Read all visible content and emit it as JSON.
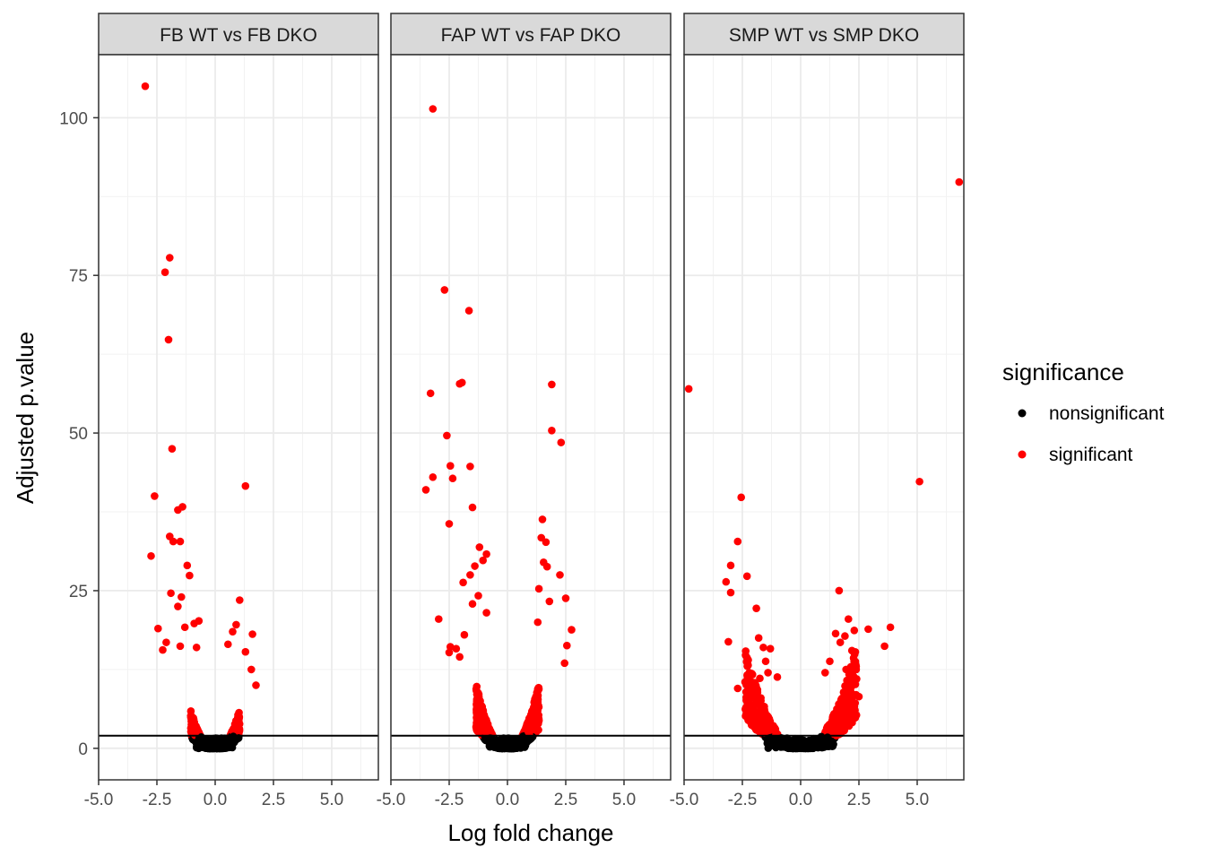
{
  "chart_data": {
    "type": "scatter",
    "xlabel": "Log fold change",
    "ylabel": "Adjusted p.value",
    "xlim": [
      -5.0,
      7.0
    ],
    "ylim": [
      -5.0,
      110.0
    ],
    "x_ticks": [
      "-5.0",
      "-2.5",
      "0.0",
      "2.5",
      "5.0"
    ],
    "y_ticks": [
      "0",
      "25",
      "50",
      "75",
      "100"
    ],
    "hline": 2,
    "grid": true,
    "legend": {
      "title": "significance",
      "position": "right",
      "entries": [
        {
          "label": "nonsignificant",
          "color": "#000000"
        },
        {
          "label": "significant",
          "color": "#ff0000"
        }
      ]
    },
    "panels": [
      {
        "title": "FB WT vs FB DKO",
        "significant_points": [
          [
            -3.0,
            105.0
          ],
          [
            -1.95,
            77.8
          ],
          [
            -2.15,
            75.5
          ],
          [
            -2.0,
            64.8
          ],
          [
            -1.85,
            47.5
          ],
          [
            1.3,
            41.6
          ],
          [
            -2.6,
            40.0
          ],
          [
            -1.4,
            38.3
          ],
          [
            -1.6,
            37.8
          ],
          [
            -1.95,
            33.6
          ],
          [
            -1.8,
            32.8
          ],
          [
            -1.5,
            32.8
          ],
          [
            -2.75,
            30.5
          ],
          [
            -1.2,
            29.0
          ],
          [
            -1.1,
            27.4
          ],
          [
            -1.9,
            24.6
          ],
          [
            -1.45,
            24.0
          ],
          [
            -1.6,
            22.5
          ],
          [
            1.05,
            23.5
          ],
          [
            -2.45,
            19.0
          ],
          [
            -1.3,
            19.2
          ],
          [
            -0.7,
            20.2
          ],
          [
            -0.9,
            19.8
          ],
          [
            0.9,
            19.6
          ],
          [
            1.6,
            18.1
          ],
          [
            0.75,
            18.5
          ],
          [
            -2.1,
            16.8
          ],
          [
            -1.5,
            16.2
          ],
          [
            -2.25,
            15.6
          ],
          [
            0.55,
            16.5
          ],
          [
            -0.8,
            16.0
          ],
          [
            1.3,
            15.3
          ],
          [
            1.75,
            10.0
          ],
          [
            1.55,
            12.5
          ]
        ]
      },
      {
        "title": "FAP WT vs FAP DKO",
        "significant_points": [
          [
            -3.2,
            101.4
          ],
          [
            -2.7,
            72.7
          ],
          [
            -1.65,
            69.4
          ],
          [
            -3.3,
            56.3
          ],
          [
            -1.95,
            58.0
          ],
          [
            -2.05,
            57.8
          ],
          [
            1.9,
            57.7
          ],
          [
            -2.6,
            49.6
          ],
          [
            1.9,
            50.4
          ],
          [
            2.3,
            48.5
          ],
          [
            -2.45,
            44.8
          ],
          [
            -1.6,
            44.7
          ],
          [
            -3.2,
            43.0
          ],
          [
            -2.35,
            42.8
          ],
          [
            -3.5,
            41.0
          ],
          [
            -1.5,
            38.2
          ],
          [
            -2.5,
            35.6
          ],
          [
            1.5,
            36.3
          ],
          [
            1.45,
            33.4
          ],
          [
            1.65,
            32.7
          ],
          [
            -1.2,
            31.9
          ],
          [
            -0.9,
            30.8
          ],
          [
            1.55,
            29.5
          ],
          [
            1.7,
            28.8
          ],
          [
            2.25,
            27.5
          ],
          [
            -1.4,
            28.9
          ],
          [
            -1.05,
            29.8
          ],
          [
            -1.6,
            27.5
          ],
          [
            1.8,
            23.3
          ],
          [
            1.35,
            25.3
          ],
          [
            -1.9,
            26.3
          ],
          [
            -1.25,
            24.2
          ],
          [
            -2.95,
            20.5
          ],
          [
            -1.5,
            22.9
          ],
          [
            2.5,
            23.8
          ],
          [
            2.75,
            18.8
          ],
          [
            -2.45,
            16.1
          ],
          [
            -2.5,
            15.2
          ],
          [
            2.55,
            16.3
          ],
          [
            -2.2,
            15.8
          ],
          [
            2.45,
            13.5
          ],
          [
            -2.05,
            14.5
          ],
          [
            -1.85,
            18.0
          ],
          [
            1.3,
            20.0
          ],
          [
            -0.9,
            21.5
          ]
        ]
      },
      {
        "title": "SMP WT vs SMP DKO",
        "significant_points": [
          [
            6.8,
            89.8
          ],
          [
            -4.8,
            57.0
          ],
          [
            5.1,
            42.3
          ],
          [
            -2.55,
            39.8
          ],
          [
            -2.7,
            32.8
          ],
          [
            -3.0,
            29.0
          ],
          [
            -2.3,
            27.3
          ],
          [
            -3.2,
            26.4
          ],
          [
            -3.0,
            24.7
          ],
          [
            1.65,
            25.0
          ],
          [
            -1.9,
            22.2
          ],
          [
            2.05,
            20.5
          ],
          [
            3.85,
            19.2
          ],
          [
            2.9,
            18.9
          ],
          [
            2.3,
            18.7
          ],
          [
            1.5,
            18.2
          ],
          [
            1.9,
            17.8
          ],
          [
            3.6,
            16.2
          ],
          [
            -3.1,
            16.9
          ],
          [
            -1.8,
            17.5
          ],
          [
            -1.6,
            16.0
          ],
          [
            -1.3,
            15.8
          ],
          [
            1.7,
            16.8
          ],
          [
            2.2,
            15.5
          ],
          [
            -1.5,
            13.8
          ],
          [
            1.25,
            13.8
          ],
          [
            -2.7,
            9.5
          ],
          [
            2.5,
            8.2
          ],
          [
            2.4,
            11.0
          ],
          [
            -1.4,
            12.0
          ],
          [
            1.95,
            12.5
          ],
          [
            -1.75,
            11.1
          ],
          [
            1.05,
            12.0
          ],
          [
            -1.0,
            11.3
          ]
        ]
      }
    ]
  }
}
